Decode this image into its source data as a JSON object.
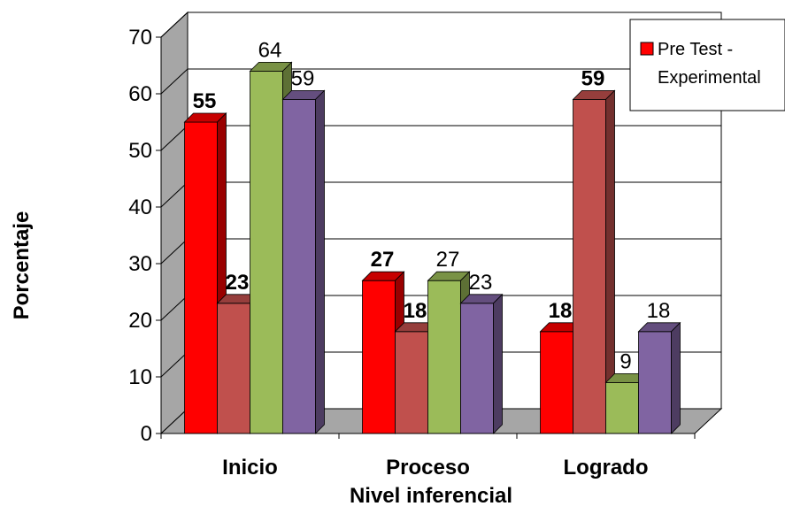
{
  "chart_data": {
    "type": "bar",
    "categories": [
      "Inicio",
      "Proceso",
      "Logrado"
    ],
    "series": [
      {
        "name": "Pre Test - Experimental",
        "values": [
          55,
          27,
          18
        ],
        "color": "#ff0000",
        "bold_labels": true
      },
      {
        "values": [
          23,
          18,
          59
        ],
        "color": "#c0504d",
        "bold_labels": true
      },
      {
        "values": [
          64,
          27,
          9
        ],
        "color": "#9bbb59",
        "bold_labels": false
      },
      {
        "values": [
          59,
          23,
          18
        ],
        "color": "#8064a2",
        "bold_labels": false
      }
    ],
    "title": "",
    "xlabel": "Nivel inferencial",
    "ylabel": "Porcentaje",
    "ylim": [
      0,
      70
    ],
    "yticks": [
      "0",
      "10",
      "20",
      "30",
      "40",
      "50",
      "60",
      "70"
    ],
    "grid": true,
    "legend_position": "top-right",
    "wall_color": "#ffffff",
    "side_wall_color": "#a6a6a6",
    "floor_color": "#a6a6a6"
  }
}
